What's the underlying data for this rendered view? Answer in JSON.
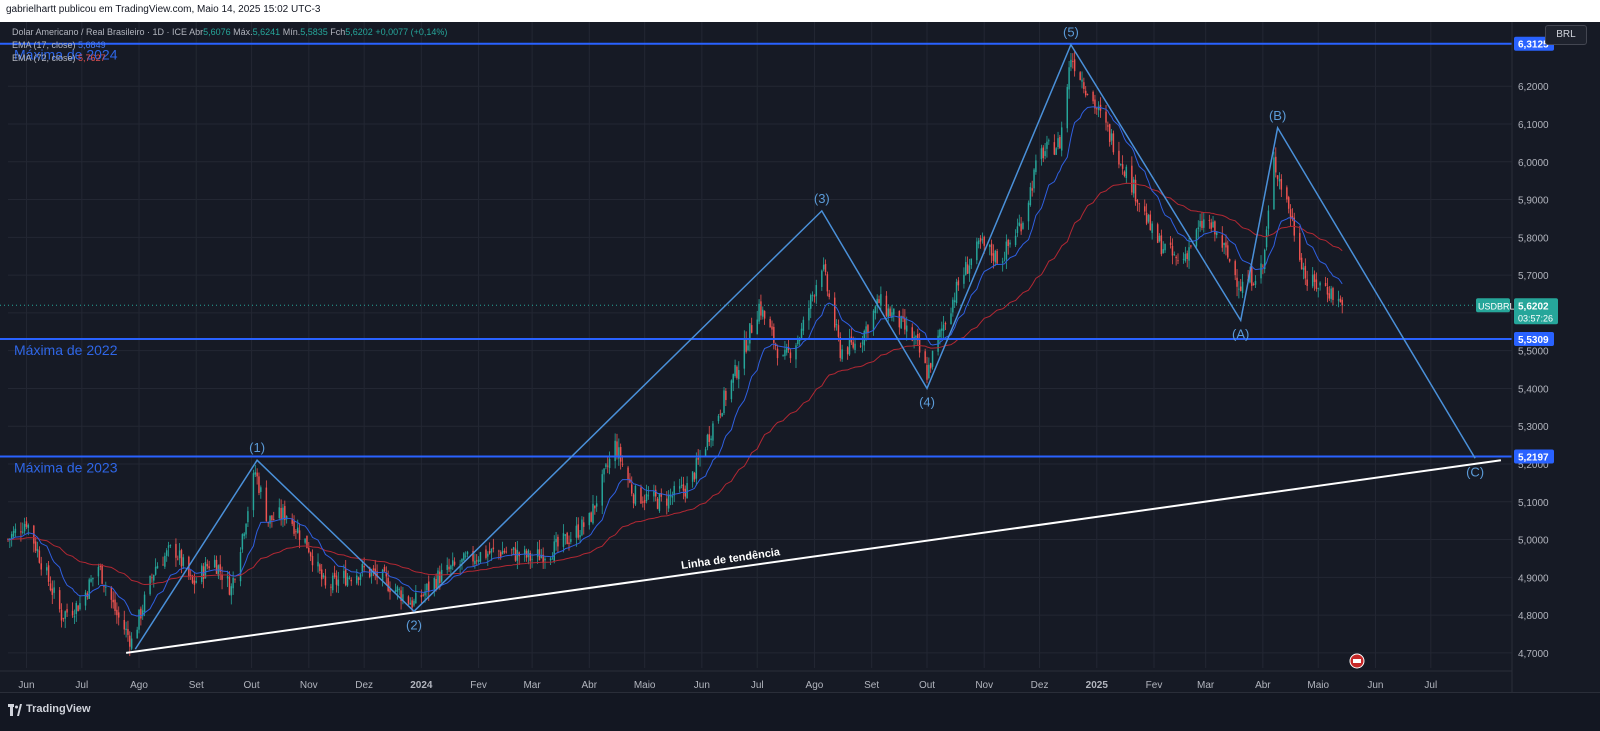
{
  "header": {
    "publisher_line": "gabrielhartt publicou em TradingView.com, Maio 14, 2025 15:02 UTC-3"
  },
  "legend": {
    "symbol_line": "Dolar Americano / Real Brasileiro · 1D · ICE",
    "open_label": "Abr",
    "open_value": "5,6076",
    "high_label": "Máx.",
    "high_value": "5,6241",
    "low_label": "Mín.",
    "low_value": "5,5835",
    "close_label": "Fch",
    "close_value": "5,6202",
    "change": "+0,0077 (+0,14%)",
    "ema17_label": "EMA (17, close)",
    "ema17_value": "5,6849",
    "ema72_label": "EMA (72, close)",
    "ema72_value": "5,7627"
  },
  "currency_button": "BRL",
  "footer": {
    "brand": "TradingView"
  },
  "colors": {
    "background": "#161a25",
    "up_candle": "#26a69a",
    "down_candle": "#ef5350",
    "ema17": "#2f5fe0",
    "ema72": "#b22833",
    "level_line": "#2962ff",
    "wave_line": "#4a90d9",
    "trend_line": "#ffffff"
  },
  "chart_data": {
    "type": "candlestick",
    "symbol": "USDBRL",
    "ylim": [
      4.66,
      6.37
    ],
    "y_ticks": [
      4.7,
      4.8,
      4.9,
      5.0,
      5.1,
      5.2,
      5.3,
      5.4,
      5.5,
      5.6,
      5.7,
      5.8,
      5.9,
      6.0,
      6.1,
      6.2
    ],
    "y_tick_labels": [
      "4,7000",
      "4,8000",
      "4,9000",
      "5,0000",
      "5,1000",
      "5,2000",
      "5,3000",
      "5,4000",
      "5,5000",
      "5,6000",
      "5,7000",
      "5,8000",
      "5,9000",
      "6,0000",
      "6,1000",
      "6,2000"
    ],
    "x_axis": {
      "start": "2023-05-22",
      "end": "2025-08-14",
      "ticks": [
        {
          "date": "2023-06-01",
          "label": "Jun"
        },
        {
          "date": "2023-07-01",
          "label": "Jul"
        },
        {
          "date": "2023-08-01",
          "label": "Ago"
        },
        {
          "date": "2023-09-01",
          "label": "Set"
        },
        {
          "date": "2023-10-01",
          "label": "Out"
        },
        {
          "date": "2023-11-01",
          "label": "Nov"
        },
        {
          "date": "2023-12-01",
          "label": "Dez"
        },
        {
          "date": "2024-01-01",
          "label": "2024"
        },
        {
          "date": "2024-02-01",
          "label": "Fev"
        },
        {
          "date": "2024-03-01",
          "label": "Mar"
        },
        {
          "date": "2024-04-01",
          "label": "Abr"
        },
        {
          "date": "2024-05-01",
          "label": "Maio"
        },
        {
          "date": "2024-06-01",
          "label": "Jun"
        },
        {
          "date": "2024-07-01",
          "label": "Jul"
        },
        {
          "date": "2024-08-01",
          "label": "Ago"
        },
        {
          "date": "2024-09-01",
          "label": "Set"
        },
        {
          "date": "2024-10-01",
          "label": "Out"
        },
        {
          "date": "2024-11-01",
          "label": "Nov"
        },
        {
          "date": "2024-12-01",
          "label": "Dez"
        },
        {
          "date": "2025-01-01",
          "label": "2025"
        },
        {
          "date": "2025-02-01",
          "label": "Fev"
        },
        {
          "date": "2025-03-01",
          "label": "Mar"
        },
        {
          "date": "2025-04-01",
          "label": "Abr"
        },
        {
          "date": "2025-05-01",
          "label": "Maio"
        },
        {
          "date": "2025-06-01",
          "label": "Jun"
        },
        {
          "date": "2025-07-01",
          "label": "Jul"
        }
      ]
    },
    "price_path": [
      [
        "2023-05-22",
        5.0
      ],
      [
        "2023-06-01",
        5.05
      ],
      [
        "2023-06-10",
        4.93
      ],
      [
        "2023-06-20",
        4.8
      ],
      [
        "2023-06-30",
        4.83
      ],
      [
        "2023-07-10",
        4.93
      ],
      [
        "2023-07-20",
        4.8
      ],
      [
        "2023-07-28",
        4.73
      ],
      [
        "2023-08-10",
        4.93
      ],
      [
        "2023-08-20",
        4.98
      ],
      [
        "2023-08-30",
        4.88
      ],
      [
        "2023-09-10",
        4.95
      ],
      [
        "2023-09-20",
        4.87
      ],
      [
        "2023-10-03",
        5.18
      ],
      [
        "2023-10-10",
        5.05
      ],
      [
        "2023-10-20",
        5.07
      ],
      [
        "2023-11-01",
        4.98
      ],
      [
        "2023-11-10",
        4.87
      ],
      [
        "2023-11-20",
        4.9
      ],
      [
        "2023-12-01",
        4.92
      ],
      [
        "2023-12-10",
        4.9
      ],
      [
        "2023-12-20",
        4.86
      ],
      [
        "2023-12-28",
        4.83
      ],
      [
        "2024-01-10",
        4.9
      ],
      [
        "2024-01-20",
        4.93
      ],
      [
        "2024-02-01",
        4.96
      ],
      [
        "2024-02-15",
        4.97
      ],
      [
        "2024-03-01",
        4.95
      ],
      [
        "2024-03-15",
        4.98
      ],
      [
        "2024-04-01",
        5.05
      ],
      [
        "2024-04-15",
        5.25
      ],
      [
        "2024-04-25",
        5.12
      ],
      [
        "2024-05-10",
        5.1
      ],
      [
        "2024-05-25",
        5.14
      ],
      [
        "2024-06-05",
        5.28
      ],
      [
        "2024-06-20",
        5.45
      ],
      [
        "2024-07-02",
        5.62
      ],
      [
        "2024-07-15",
        5.47
      ],
      [
        "2024-07-25",
        5.55
      ],
      [
        "2024-08-05",
        5.73
      ],
      [
        "2024-08-15",
        5.5
      ],
      [
        "2024-08-25",
        5.52
      ],
      [
        "2024-09-05",
        5.63
      ],
      [
        "2024-09-15",
        5.58
      ],
      [
        "2024-09-25",
        5.52
      ],
      [
        "2024-10-01",
        5.44
      ],
      [
        "2024-10-10",
        5.57
      ],
      [
        "2024-10-20",
        5.7
      ],
      [
        "2024-10-30",
        5.78
      ],
      [
        "2024-11-10",
        5.74
      ],
      [
        "2024-11-22",
        5.85
      ],
      [
        "2024-12-01",
        6.02
      ],
      [
        "2024-12-12",
        6.05
      ],
      [
        "2024-12-18",
        6.28
      ],
      [
        "2024-12-28",
        6.18
      ],
      [
        "2025-01-10",
        6.05
      ],
      [
        "2025-01-22",
        5.92
      ],
      [
        "2025-02-01",
        5.8
      ],
      [
        "2025-02-15",
        5.73
      ],
      [
        "2025-03-01",
        5.85
      ],
      [
        "2025-03-10",
        5.78
      ],
      [
        "2025-03-20",
        5.67
      ],
      [
        "2025-04-01",
        5.72
      ],
      [
        "2025-04-07",
        6.0
      ],
      [
        "2025-04-15",
        5.88
      ],
      [
        "2025-04-25",
        5.68
      ],
      [
        "2025-05-05",
        5.67
      ],
      [
        "2025-05-14",
        5.6202
      ]
    ],
    "ema17_last": 5.6849,
    "ema72_last": 5.7627,
    "horizontal_levels": [
      {
        "name": "Máxima de 2024",
        "value": 6.3125,
        "label": "6,3125"
      },
      {
        "name": "Máxima de 2022",
        "value": 5.5309,
        "label": "5,5309"
      },
      {
        "name": "Máxima de 2023",
        "value": 5.2197,
        "label": "5,2197"
      }
    ],
    "current_price": {
      "symbol": "USDBRL",
      "value": 5.6202,
      "label": "5,6202",
      "countdown": "03:57:26"
    },
    "elliott_waves": [
      {
        "label": "(1)",
        "date": "2023-10-04",
        "value": 5.21
      },
      {
        "label": "(2)",
        "date": "2023-12-28",
        "value": 4.81
      },
      {
        "label": "(3)",
        "date": "2024-08-05",
        "value": 5.87
      },
      {
        "label": "(4)",
        "date": "2024-10-01",
        "value": 5.4
      },
      {
        "label": "(5)",
        "date": "2024-12-18",
        "value": 6.31
      },
      {
        "label": "(A)",
        "date": "2025-03-20",
        "value": 5.58
      },
      {
        "label": "(B)",
        "date": "2025-04-09",
        "value": 6.09
      },
      {
        "label": "(C)",
        "date": "2025-07-25",
        "value": 5.215
      }
    ],
    "wave_start": {
      "date": "2023-07-30",
      "value": 4.71
    },
    "trend_line": {
      "label": "Linha de tendência",
      "start": {
        "date": "2023-07-25",
        "value": 4.7
      },
      "end": {
        "date": "2025-08-08",
        "value": 5.21
      }
    }
  }
}
